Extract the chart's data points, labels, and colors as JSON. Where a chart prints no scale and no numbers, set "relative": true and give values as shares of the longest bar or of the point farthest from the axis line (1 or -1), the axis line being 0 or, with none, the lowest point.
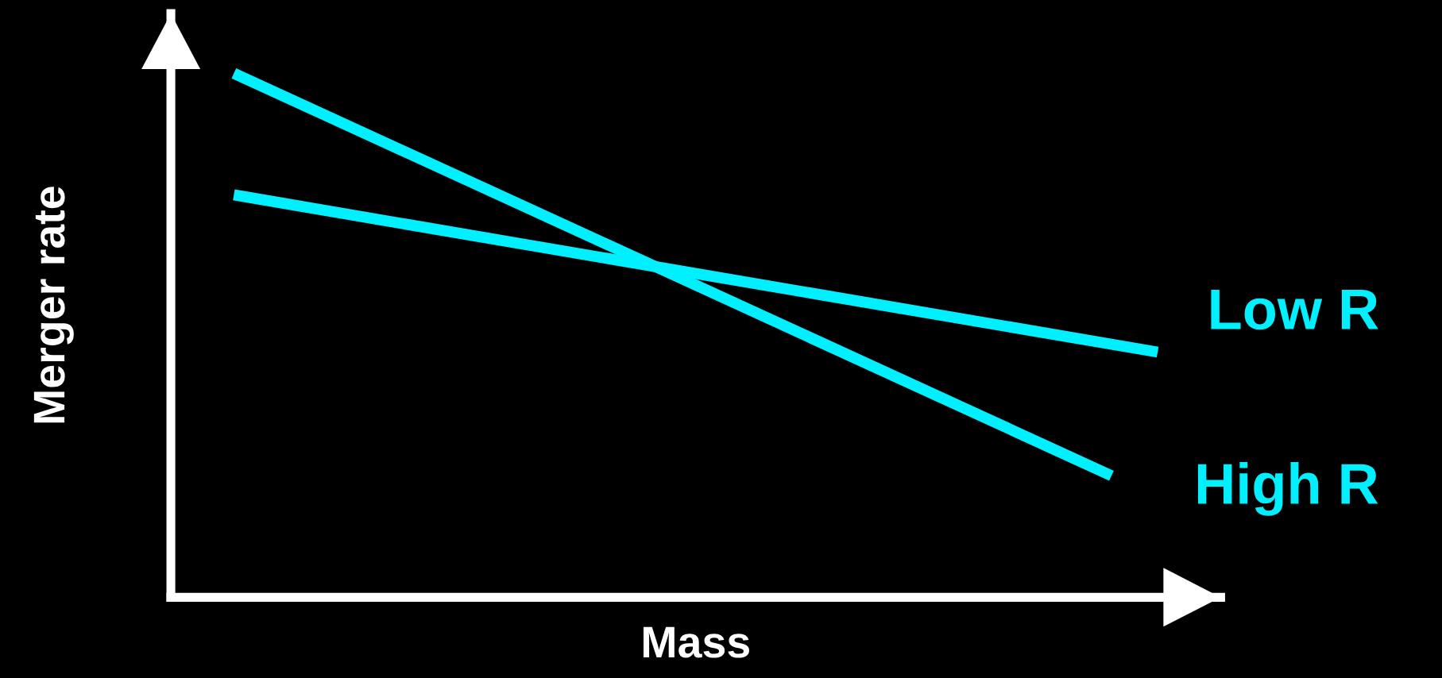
{
  "chart_data": {
    "type": "line",
    "relative": true,
    "xlabel": "Mass",
    "ylabel": "Merger rate",
    "legend": false,
    "line_style": "solid",
    "categories": [
      null,
      null,
      null,
      null,
      null,
      null,
      null,
      null,
      null,
      null,
      null,
      null,
      null,
      null,
      null,
      null,
      null,
      null,
      null,
      null,
      null
    ],
    "series": [
      {
        "name": "Low R",
        "color": "#00f0ff",
        "values": [
          0.768,
          null,
          null,
          null,
          null,
          null,
          null,
          null,
          null,
          null,
          null,
          null,
          null,
          null,
          null,
          null,
          null,
          null,
          null,
          null,
          0.468
        ]
      },
      {
        "name": "High R",
        "color": "#00f0ff",
        "values": [
          1.0,
          null,
          null,
          null,
          null,
          null,
          null,
          null,
          null,
          null,
          null,
          null,
          null,
          null,
          null,
          null,
          null,
          null,
          null,
          0.232,
          null
        ]
      }
    ]
  }
}
